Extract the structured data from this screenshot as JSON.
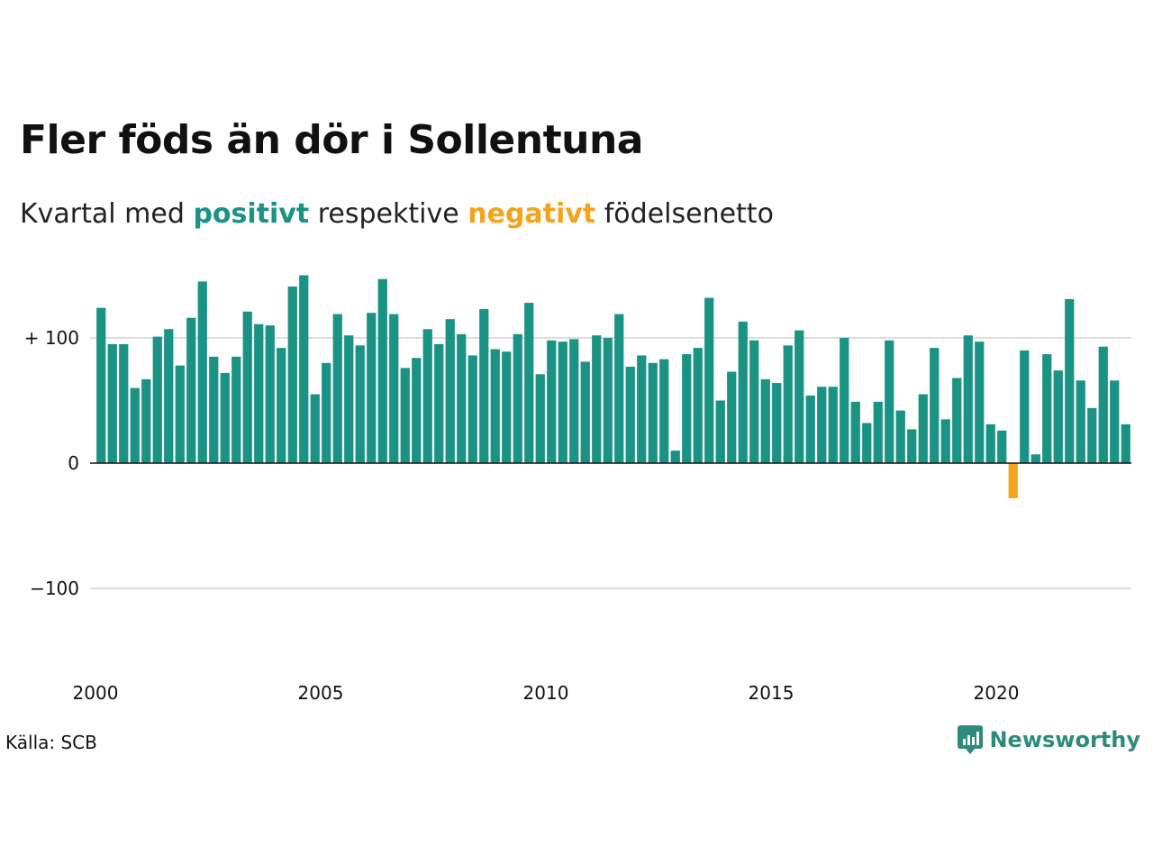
{
  "title": "Fler föds än dör i Sollentuna",
  "subtitle": {
    "prefix": "Kvartal med",
    "positive_word": "positivt",
    "middle": "respektive",
    "negative_word": "negativt",
    "suffix": "födelsenetto"
  },
  "source": "Källa: SCB",
  "brand": {
    "name": "Newsworthy",
    "icon": "newsworthy-logo-icon",
    "color": "#2e8a7c"
  },
  "colors": {
    "positive": "#1a9385",
    "negative": "#f5a31a",
    "grid": "#dddddd",
    "zero_line": "#111111"
  },
  "chart_data": {
    "type": "bar",
    "title": "Fler föds än dör i Sollentuna",
    "xlabel": "",
    "ylabel": "",
    "ylim": [
      -150,
      150
    ],
    "y_ticks": [
      {
        "value": 100,
        "label": "+ 100"
      },
      {
        "value": 0,
        "label": "0"
      },
      {
        "value": -100,
        "label": "−100"
      }
    ],
    "x_tick_labels": [
      "2000",
      "2005",
      "2010",
      "2015",
      "2020"
    ],
    "x_ticks_years": [
      2000,
      2005,
      2010,
      2015,
      2020
    ],
    "start_year": 2000,
    "grid": true,
    "legend": "none",
    "values": [
      124,
      95,
      95,
      60,
      67,
      101,
      107,
      78,
      116,
      145,
      85,
      72,
      85,
      121,
      111,
      110,
      92,
      141,
      150,
      55,
      80,
      119,
      102,
      94,
      120,
      147,
      119,
      76,
      84,
      107,
      95,
      115,
      103,
      86,
      123,
      91,
      89,
      103,
      128,
      71,
      98,
      97,
      99,
      81,
      102,
      100,
      119,
      77,
      86,
      80,
      83,
      10,
      87,
      92,
      132,
      50,
      73,
      113,
      98,
      67,
      64,
      94,
      106,
      54,
      61,
      61,
      100,
      49,
      32,
      49,
      98,
      42,
      27,
      55,
      92,
      35,
      68,
      102,
      97,
      31,
      26,
      -28,
      90,
      7,
      87,
      74,
      131,
      66,
      44,
      93,
      66,
      31
    ]
  }
}
